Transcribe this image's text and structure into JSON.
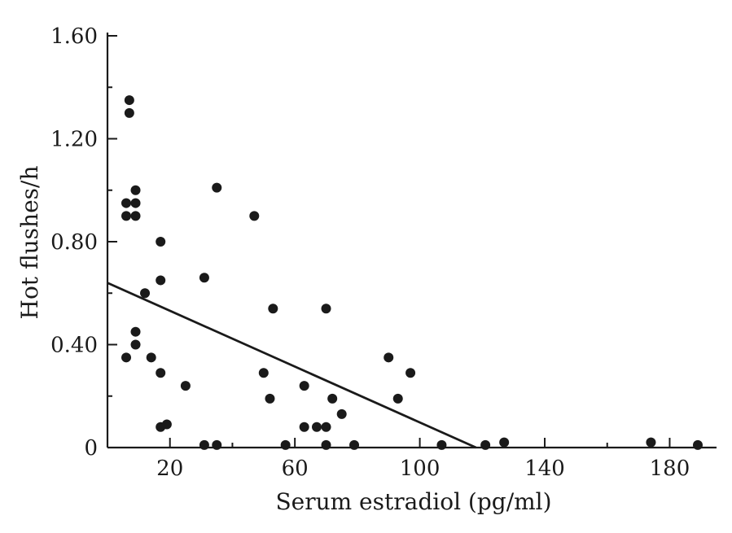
{
  "chart_data": {
    "type": "scatter",
    "title": "",
    "xlabel": "Serum estradiol (pg/ml)",
    "ylabel": "Hot flushes/h",
    "xlim": [
      0,
      195
    ],
    "ylim": [
      0,
      1.6
    ],
    "x_ticks": [
      20,
      60,
      100,
      140,
      180
    ],
    "x_tick_labels": [
      "20",
      "60",
      "100",
      "140",
      "180"
    ],
    "y_ticks": [
      0,
      0.4,
      0.8,
      1.2,
      1.6
    ],
    "y_tick_labels": [
      "0",
      "0.40",
      "0.80",
      "1.20",
      "1.60"
    ],
    "grid": false,
    "legend": "none",
    "series": [
      {
        "points": [
          [
            7,
            1.35
          ],
          [
            7,
            1.3
          ],
          [
            6,
            0.95
          ],
          [
            6,
            0.9
          ],
          [
            9,
            0.95
          ],
          [
            9,
            0.9
          ],
          [
            9,
            1.0
          ],
          [
            12,
            0.6
          ],
          [
            17,
            0.8
          ],
          [
            17,
            0.65
          ],
          [
            9,
            0.45
          ],
          [
            9,
            0.4
          ],
          [
            6,
            0.35
          ],
          [
            14,
            0.35
          ],
          [
            17,
            0.29
          ],
          [
            17,
            0.08
          ],
          [
            19,
            0.09
          ],
          [
            25,
            0.24
          ],
          [
            31,
            0.66
          ],
          [
            35,
            1.01
          ],
          [
            31,
            0.01
          ],
          [
            35,
            0.01
          ],
          [
            47,
            0.9
          ],
          [
            50,
            0.29
          ],
          [
            52,
            0.19
          ],
          [
            53,
            0.54
          ],
          [
            57,
            0.01
          ],
          [
            63,
            0.24
          ],
          [
            63,
            0.08
          ],
          [
            67,
            0.08
          ],
          [
            70,
            0.54
          ],
          [
            70,
            0.08
          ],
          [
            70,
            0.01
          ],
          [
            72,
            0.19
          ],
          [
            75,
            0.13
          ],
          [
            79,
            0.01
          ],
          [
            90,
            0.35
          ],
          [
            93,
            0.19
          ],
          [
            97,
            0.29
          ],
          [
            107,
            0.01
          ],
          [
            121,
            0.01
          ],
          [
            127,
            0.02
          ],
          [
            174,
            0.02
          ],
          [
            189,
            0.01
          ]
        ]
      }
    ],
    "regression_line": {
      "x": [
        0,
        118
      ],
      "y": [
        0.64,
        0.0
      ]
    },
    "marker_color": "#1a1a1a"
  }
}
